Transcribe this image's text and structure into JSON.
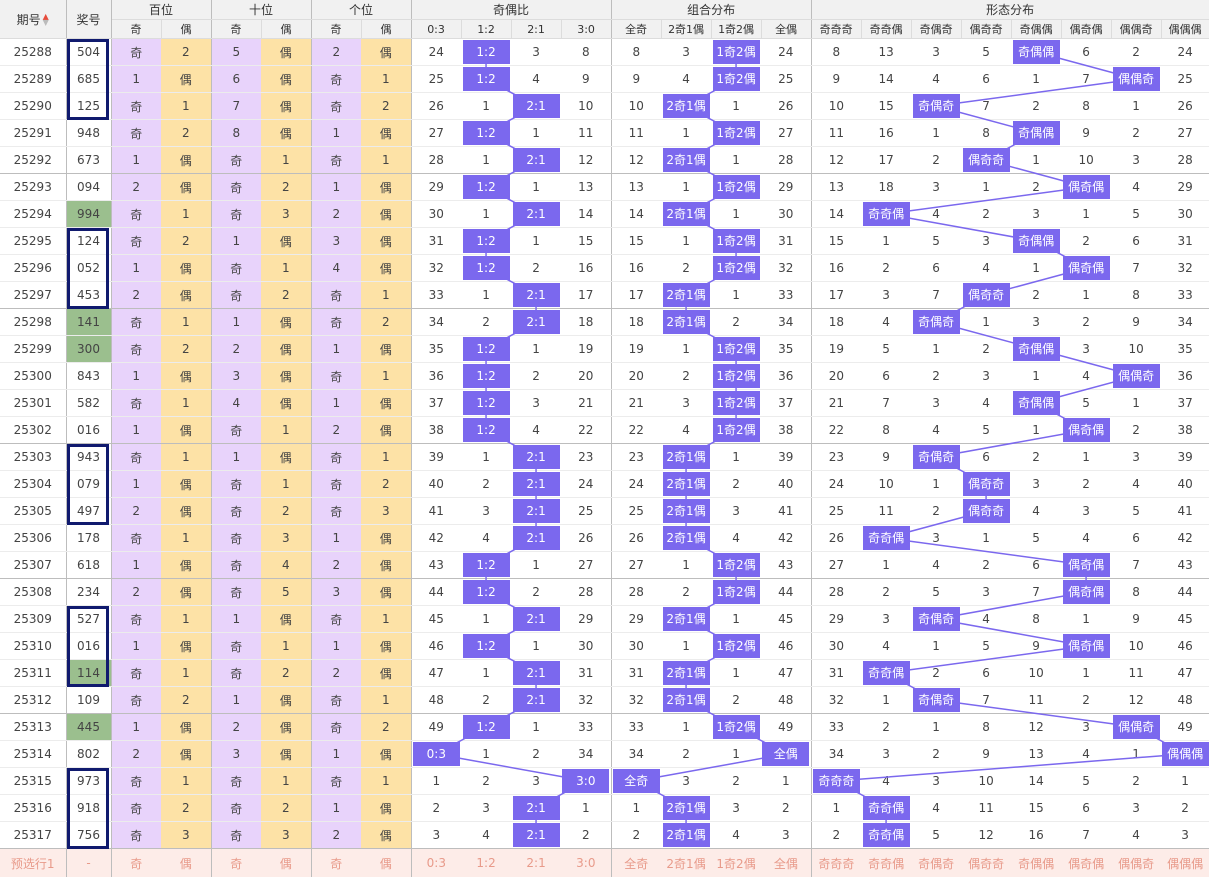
{
  "headers": {
    "period": "期号",
    "prize": "奖号",
    "hundreds": "百位",
    "tens": "十位",
    "ones": "个位",
    "ratio": "奇偶比",
    "combo": "组合分布",
    "shape": "形态分布"
  },
  "sub_headers": {
    "digit": [
      "奇",
      "偶"
    ],
    "ratio": [
      "0:3",
      "1:2",
      "2:1",
      "3:0"
    ],
    "combo": [
      "全奇",
      "2奇1偶",
      "1奇2偶",
      "全偶"
    ],
    "shape": [
      "奇奇奇",
      "奇奇偶",
      "奇偶奇",
      "偶奇奇",
      "奇偶偶",
      "偶奇偶",
      "偶偶奇",
      "偶偶偶"
    ]
  },
  "sort_icons": {
    "up": "▲",
    "down": "▼"
  },
  "colors": {
    "odd_cell": "#e8d3fb",
    "even_cell": "#fde2a6",
    "highlight": "#7b68ee",
    "repeat": "#9bbf8e",
    "box": "#101a6e"
  },
  "rows": [
    {
      "period": "25288",
      "num": "504",
      "rep": false,
      "c": [
        "奇",
        "2",
        "5",
        "偶",
        "2",
        "偶",
        "24",
        "1:2",
        "3",
        "8",
        "8",
        "3",
        "1奇2偶",
        "24",
        "8",
        "13",
        "3",
        "5",
        "奇偶偶",
        "6",
        "2",
        "24"
      ]
    },
    {
      "period": "25289",
      "num": "685",
      "rep": false,
      "c": [
        "1",
        "偶",
        "6",
        "偶",
        "奇",
        "1",
        "25",
        "1:2",
        "4",
        "9",
        "9",
        "4",
        "1奇2偶",
        "25",
        "9",
        "14",
        "4",
        "6",
        "1",
        "7",
        "偶偶奇",
        "25"
      ]
    },
    {
      "period": "25290",
      "num": "125",
      "rep": false,
      "c": [
        "奇",
        "1",
        "7",
        "偶",
        "奇",
        "2",
        "26",
        "1",
        "2:1",
        "10",
        "10",
        "2奇1偶",
        "1",
        "26",
        "10",
        "15",
        "奇偶奇",
        "7",
        "2",
        "8",
        "1",
        "26"
      ]
    },
    {
      "period": "25291",
      "num": "948",
      "rep": false,
      "c": [
        "奇",
        "2",
        "8",
        "偶",
        "1",
        "偶",
        "27",
        "1:2",
        "1",
        "11",
        "11",
        "1",
        "1奇2偶",
        "27",
        "11",
        "16",
        "1",
        "8",
        "奇偶偶",
        "9",
        "2",
        "27"
      ]
    },
    {
      "period": "25292",
      "num": "673",
      "rep": false,
      "c": [
        "1",
        "偶",
        "奇",
        "1",
        "奇",
        "1",
        "28",
        "1",
        "2:1",
        "12",
        "12",
        "2奇1偶",
        "1",
        "28",
        "12",
        "17",
        "2",
        "偶奇奇",
        "1",
        "10",
        "3",
        "28"
      ]
    },
    {
      "period": "25293",
      "num": "094",
      "rep": false,
      "c": [
        "2",
        "偶",
        "奇",
        "2",
        "1",
        "偶",
        "29",
        "1:2",
        "1",
        "13",
        "13",
        "1",
        "1奇2偶",
        "29",
        "13",
        "18",
        "3",
        "1",
        "2",
        "偶奇偶",
        "4",
        "29"
      ]
    },
    {
      "period": "25294",
      "num": "994",
      "rep": true,
      "c": [
        "奇",
        "1",
        "奇",
        "3",
        "2",
        "偶",
        "30",
        "1",
        "2:1",
        "14",
        "14",
        "2奇1偶",
        "1",
        "30",
        "14",
        "奇奇偶",
        "4",
        "2",
        "3",
        "1",
        "5",
        "30"
      ]
    },
    {
      "period": "25295",
      "num": "124",
      "rep": false,
      "c": [
        "奇",
        "2",
        "1",
        "偶",
        "3",
        "偶",
        "31",
        "1:2",
        "1",
        "15",
        "15",
        "1",
        "1奇2偶",
        "31",
        "15",
        "1",
        "5",
        "3",
        "奇偶偶",
        "2",
        "6",
        "31"
      ]
    },
    {
      "period": "25296",
      "num": "052",
      "rep": false,
      "c": [
        "1",
        "偶",
        "奇",
        "1",
        "4",
        "偶",
        "32",
        "1:2",
        "2",
        "16",
        "16",
        "2",
        "1奇2偶",
        "32",
        "16",
        "2",
        "6",
        "4",
        "1",
        "偶奇偶",
        "7",
        "32"
      ]
    },
    {
      "period": "25297",
      "num": "453",
      "rep": false,
      "c": [
        "2",
        "偶",
        "奇",
        "2",
        "奇",
        "1",
        "33",
        "1",
        "2:1",
        "17",
        "17",
        "2奇1偶",
        "1",
        "33",
        "17",
        "3",
        "7",
        "偶奇奇",
        "2",
        "1",
        "8",
        "33"
      ]
    },
    {
      "period": "25298",
      "num": "141",
      "rep": true,
      "c": [
        "奇",
        "1",
        "1",
        "偶",
        "奇",
        "2",
        "34",
        "2",
        "2:1",
        "18",
        "18",
        "2奇1偶",
        "2",
        "34",
        "18",
        "4",
        "奇偶奇",
        "1",
        "3",
        "2",
        "9",
        "34"
      ]
    },
    {
      "period": "25299",
      "num": "300",
      "rep": true,
      "c": [
        "奇",
        "2",
        "2",
        "偶",
        "1",
        "偶",
        "35",
        "1:2",
        "1",
        "19",
        "19",
        "1",
        "1奇2偶",
        "35",
        "19",
        "5",
        "1",
        "2",
        "奇偶偶",
        "3",
        "10",
        "35"
      ]
    },
    {
      "period": "25300",
      "num": "843",
      "rep": false,
      "c": [
        "1",
        "偶",
        "3",
        "偶",
        "奇",
        "1",
        "36",
        "1:2",
        "2",
        "20",
        "20",
        "2",
        "1奇2偶",
        "36",
        "20",
        "6",
        "2",
        "3",
        "1",
        "4",
        "偶偶奇",
        "36"
      ]
    },
    {
      "period": "25301",
      "num": "582",
      "rep": false,
      "c": [
        "奇",
        "1",
        "4",
        "偶",
        "1",
        "偶",
        "37",
        "1:2",
        "3",
        "21",
        "21",
        "3",
        "1奇2偶",
        "37",
        "21",
        "7",
        "3",
        "4",
        "奇偶偶",
        "5",
        "1",
        "37"
      ]
    },
    {
      "period": "25302",
      "num": "016",
      "rep": false,
      "c": [
        "1",
        "偶",
        "奇",
        "1",
        "2",
        "偶",
        "38",
        "1:2",
        "4",
        "22",
        "22",
        "4",
        "1奇2偶",
        "38",
        "22",
        "8",
        "4",
        "5",
        "1",
        "偶奇偶",
        "2",
        "38"
      ]
    },
    {
      "period": "25303",
      "num": "943",
      "rep": false,
      "c": [
        "奇",
        "1",
        "1",
        "偶",
        "奇",
        "1",
        "39",
        "1",
        "2:1",
        "23",
        "23",
        "2奇1偶",
        "1",
        "39",
        "23",
        "9",
        "奇偶奇",
        "6",
        "2",
        "1",
        "3",
        "39"
      ]
    },
    {
      "period": "25304",
      "num": "079",
      "rep": false,
      "c": [
        "1",
        "偶",
        "奇",
        "1",
        "奇",
        "2",
        "40",
        "2",
        "2:1",
        "24",
        "24",
        "2奇1偶",
        "2",
        "40",
        "24",
        "10",
        "1",
        "偶奇奇",
        "3",
        "2",
        "4",
        "40"
      ]
    },
    {
      "period": "25305",
      "num": "497",
      "rep": false,
      "c": [
        "2",
        "偶",
        "奇",
        "2",
        "奇",
        "3",
        "41",
        "3",
        "2:1",
        "25",
        "25",
        "2奇1偶",
        "3",
        "41",
        "25",
        "11",
        "2",
        "偶奇奇",
        "4",
        "3",
        "5",
        "41"
      ]
    },
    {
      "period": "25306",
      "num": "178",
      "rep": false,
      "c": [
        "奇",
        "1",
        "奇",
        "3",
        "1",
        "偶",
        "42",
        "4",
        "2:1",
        "26",
        "26",
        "2奇1偶",
        "4",
        "42",
        "26",
        "奇奇偶",
        "3",
        "1",
        "5",
        "4",
        "6",
        "42"
      ]
    },
    {
      "period": "25307",
      "num": "618",
      "rep": false,
      "c": [
        "1",
        "偶",
        "奇",
        "4",
        "2",
        "偶",
        "43",
        "1:2",
        "1",
        "27",
        "27",
        "1",
        "1奇2偶",
        "43",
        "27",
        "1",
        "4",
        "2",
        "6",
        "偶奇偶",
        "7",
        "43"
      ]
    },
    {
      "period": "25308",
      "num": "234",
      "rep": false,
      "c": [
        "2",
        "偶",
        "奇",
        "5",
        "3",
        "偶",
        "44",
        "1:2",
        "2",
        "28",
        "28",
        "2",
        "1奇2偶",
        "44",
        "28",
        "2",
        "5",
        "3",
        "7",
        "偶奇偶",
        "8",
        "44"
      ]
    },
    {
      "period": "25309",
      "num": "527",
      "rep": false,
      "c": [
        "奇",
        "1",
        "1",
        "偶",
        "奇",
        "1",
        "45",
        "1",
        "2:1",
        "29",
        "29",
        "2奇1偶",
        "1",
        "45",
        "29",
        "3",
        "奇偶奇",
        "4",
        "8",
        "1",
        "9",
        "45"
      ]
    },
    {
      "period": "25310",
      "num": "016",
      "rep": false,
      "c": [
        "1",
        "偶",
        "奇",
        "1",
        "1",
        "偶",
        "46",
        "1:2",
        "1",
        "30",
        "30",
        "1",
        "1奇2偶",
        "46",
        "30",
        "4",
        "1",
        "5",
        "9",
        "偶奇偶",
        "10",
        "46"
      ]
    },
    {
      "period": "25311",
      "num": "114",
      "rep": true,
      "c": [
        "奇",
        "1",
        "奇",
        "2",
        "2",
        "偶",
        "47",
        "1",
        "2:1",
        "31",
        "31",
        "2奇1偶",
        "1",
        "47",
        "31",
        "奇奇偶",
        "2",
        "6",
        "10",
        "1",
        "11",
        "47"
      ]
    },
    {
      "period": "25312",
      "num": "109",
      "rep": false,
      "c": [
        "奇",
        "2",
        "1",
        "偶",
        "奇",
        "1",
        "48",
        "2",
        "2:1",
        "32",
        "32",
        "2奇1偶",
        "2",
        "48",
        "32",
        "1",
        "奇偶奇",
        "7",
        "11",
        "2",
        "12",
        "48"
      ]
    },
    {
      "period": "25313",
      "num": "445",
      "rep": true,
      "c": [
        "1",
        "偶",
        "2",
        "偶",
        "奇",
        "2",
        "49",
        "1:2",
        "1",
        "33",
        "33",
        "1",
        "1奇2偶",
        "49",
        "33",
        "2",
        "1",
        "8",
        "12",
        "3",
        "偶偶奇",
        "49"
      ]
    },
    {
      "period": "25314",
      "num": "802",
      "rep": false,
      "c": [
        "2",
        "偶",
        "3",
        "偶",
        "1",
        "偶",
        "0:3",
        "1",
        "2",
        "34",
        "34",
        "2",
        "1",
        "全偶",
        "34",
        "3",
        "2",
        "9",
        "13",
        "4",
        "1",
        "偶偶偶"
      ]
    },
    {
      "period": "25315",
      "num": "973",
      "rep": false,
      "c": [
        "奇",
        "1",
        "奇",
        "1",
        "奇",
        "1",
        "1",
        "2",
        "3",
        "3:0",
        "全奇",
        "3",
        "2",
        "1",
        "奇奇奇",
        "4",
        "3",
        "10",
        "14",
        "5",
        "2",
        "1"
      ]
    },
    {
      "period": "25316",
      "num": "918",
      "rep": false,
      "c": [
        "奇",
        "2",
        "奇",
        "2",
        "1",
        "偶",
        "2",
        "3",
        "2:1",
        "1",
        "1",
        "2奇1偶",
        "3",
        "2",
        "1",
        "奇奇偶",
        "4",
        "11",
        "15",
        "6",
        "3",
        "2"
      ]
    },
    {
      "period": "25317",
      "num": "756",
      "rep": false,
      "c": [
        "奇",
        "3",
        "奇",
        "3",
        "2",
        "偶",
        "3",
        "4",
        "2:1",
        "2",
        "2",
        "2奇1偶",
        "4",
        "3",
        "2",
        "奇奇偶",
        "5",
        "12",
        "16",
        "7",
        "4",
        "3"
      ]
    }
  ],
  "preselect": {
    "label": "预选行1",
    "num": "-",
    "c": [
      "奇",
      "偶",
      "奇",
      "偶",
      "奇",
      "偶",
      "0:3",
      "1:2",
      "2:1",
      "3:0",
      "全奇",
      "2奇1偶",
      "1奇2偶",
      "全偶",
      "奇奇奇",
      "奇奇偶",
      "奇偶奇",
      "偶奇奇",
      "奇偶偶",
      "偶奇偶",
      "偶偶奇",
      "偶偶偶"
    ]
  }
}
